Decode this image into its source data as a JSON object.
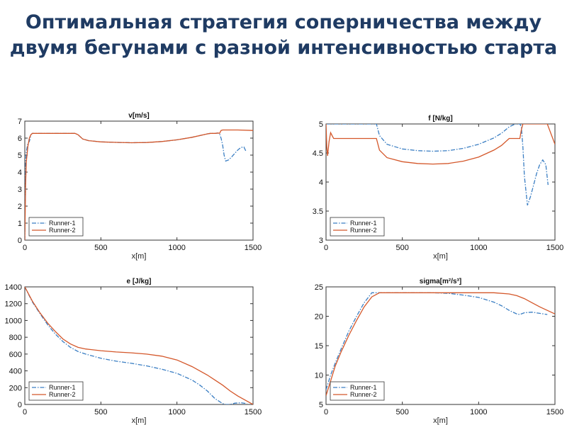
{
  "slide": {
    "title_line1": "Оптимальная стратегия соперничества между",
    "title_line2": "двумя бегунами с разной интенсивностью старта"
  },
  "colors": {
    "title": "#1f3b63",
    "runner1": "#3a7ec3",
    "runner2": "#d4572a",
    "axes": "#333333"
  },
  "chart_data": [
    {
      "type": "line",
      "title": "v[m/s]",
      "xlabel": "x[m]",
      "ylabel": "",
      "xlim": [
        0,
        1500
      ],
      "ylim": [
        0,
        7
      ],
      "xticks": [
        0,
        500,
        1000,
        1500
      ],
      "yticks": [
        0,
        1,
        2,
        3,
        4,
        5,
        6,
        7
      ],
      "legend": "bottom-left",
      "grid": false,
      "series": [
        {
          "name": "Runner-1",
          "style": "dashdot",
          "x": [
            0,
            5,
            10,
            20,
            30,
            40,
            50,
            100,
            200,
            300,
            330,
            350,
            380,
            420,
            500,
            600,
            700,
            800,
            900,
            1000,
            1100,
            1200,
            1220,
            1250,
            1270,
            1280,
            1290,
            1300,
            1310,
            1320,
            1340,
            1360,
            1380,
            1400,
            1420,
            1440,
            1455
          ],
          "y": [
            0,
            4.5,
            5.2,
            5.7,
            5.8,
            6.2,
            6.28,
            6.28,
            6.28,
            6.28,
            6.28,
            6.2,
            5.95,
            5.85,
            5.78,
            5.75,
            5.73,
            5.74,
            5.8,
            5.9,
            6.05,
            6.25,
            6.28,
            6.28,
            6.3,
            6.25,
            6.0,
            5.6,
            5.0,
            4.65,
            4.72,
            4.9,
            5.1,
            5.3,
            5.45,
            5.48,
            5.2
          ]
        },
        {
          "name": "Runner-2",
          "style": "solid",
          "x": [
            0,
            5,
            10,
            20,
            30,
            40,
            50,
            100,
            200,
            300,
            330,
            350,
            380,
            420,
            500,
            600,
            700,
            800,
            900,
            1000,
            1100,
            1200,
            1220,
            1250,
            1270,
            1280,
            1290,
            1300,
            1310,
            1400,
            1500
          ],
          "y": [
            0,
            3.2,
            4.6,
            5.5,
            6.0,
            6.2,
            6.28,
            6.28,
            6.28,
            6.28,
            6.28,
            6.2,
            5.95,
            5.85,
            5.78,
            5.75,
            5.73,
            5.74,
            5.8,
            5.9,
            6.05,
            6.25,
            6.28,
            6.28,
            6.3,
            6.28,
            6.45,
            6.48,
            6.48,
            6.48,
            6.45
          ]
        }
      ]
    },
    {
      "type": "line",
      "title": "f [N/kg]",
      "xlabel": "x[m]",
      "ylabel": "",
      "xlim": [
        0,
        1500
      ],
      "ylim": [
        3,
        5
      ],
      "xticks": [
        0,
        500,
        1000,
        1500
      ],
      "yticks": [
        3,
        3.5,
        4,
        4.5,
        5
      ],
      "legend": "bottom-left",
      "grid": false,
      "series": [
        {
          "name": "Runner-1",
          "style": "dashdot",
          "x": [
            0,
            100,
            200,
            300,
            330,
            350,
            400,
            500,
            600,
            700,
            800,
            900,
            1000,
            1100,
            1150,
            1200,
            1240,
            1270,
            1280,
            1290,
            1300,
            1320,
            1340,
            1360,
            1380,
            1400,
            1420,
            1440,
            1455
          ],
          "y": [
            5.0,
            5.0,
            5.0,
            5.0,
            5.0,
            4.8,
            4.65,
            4.57,
            4.54,
            4.53,
            4.54,
            4.58,
            4.65,
            4.76,
            4.84,
            4.95,
            5.0,
            5.0,
            4.95,
            4.6,
            4.1,
            3.6,
            3.75,
            3.95,
            4.15,
            4.3,
            4.38,
            4.3,
            3.95
          ]
        },
        {
          "name": "Runner-2",
          "style": "solid",
          "x": [
            0,
            5,
            10,
            20,
            30,
            40,
            50,
            100,
            200,
            300,
            330,
            350,
            400,
            500,
            600,
            700,
            800,
            900,
            1000,
            1100,
            1150,
            1200,
            1240,
            1270,
            1280,
            1290,
            1300,
            1350,
            1400,
            1450,
            1500
          ],
          "y": [
            5.0,
            4.6,
            4.45,
            4.7,
            4.85,
            4.8,
            4.75,
            4.75,
            4.75,
            4.75,
            4.75,
            4.55,
            4.42,
            4.35,
            4.32,
            4.31,
            4.32,
            4.36,
            4.43,
            4.55,
            4.63,
            4.75,
            4.75,
            4.75,
            4.9,
            5.0,
            5.0,
            5.0,
            5.0,
            5.0,
            4.65
          ]
        }
      ]
    },
    {
      "type": "line",
      "title": "e [J/kg]",
      "xlabel": "x[m]",
      "ylabel": "",
      "xlim": [
        0,
        1500
      ],
      "ylim": [
        0,
        1400
      ],
      "xticks": [
        0,
        500,
        1000,
        1500
      ],
      "yticks": [
        0,
        200,
        400,
        600,
        800,
        1000,
        1200,
        1400
      ],
      "legend": "bottom-left",
      "grid": false,
      "series": [
        {
          "name": "Runner-1",
          "style": "dashdot",
          "x": [
            0,
            50,
            100,
            150,
            200,
            250,
            300,
            350,
            400,
            500,
            600,
            700,
            800,
            900,
            1000,
            1100,
            1150,
            1200,
            1250,
            1300,
            1320,
            1350,
            1380,
            1420,
            1460
          ],
          "y": [
            1400,
            1220,
            1080,
            950,
            840,
            750,
            680,
            630,
            600,
            550,
            515,
            490,
            460,
            420,
            370,
            290,
            230,
            160,
            70,
            10,
            0,
            0,
            15,
            20,
            10
          ]
        },
        {
          "name": "Runner-2",
          "style": "solid",
          "x": [
            0,
            50,
            100,
            150,
            200,
            250,
            300,
            350,
            400,
            500,
            600,
            700,
            800,
            900,
            1000,
            1100,
            1200,
            1250,
            1300,
            1350,
            1400,
            1450,
            1500
          ],
          "y": [
            1400,
            1230,
            1090,
            970,
            870,
            780,
            720,
            680,
            660,
            640,
            625,
            615,
            600,
            575,
            530,
            450,
            350,
            290,
            230,
            160,
            100,
            50,
            0
          ]
        }
      ]
    },
    {
      "type": "line",
      "title": "sigma[m²/s³]",
      "xlabel": "x[m]",
      "ylabel": "",
      "xlim": [
        0,
        1500
      ],
      "ylim": [
        5,
        25
      ],
      "xticks": [
        0,
        500,
        1000,
        1500
      ],
      "yticks": [
        5,
        10,
        15,
        20,
        25
      ],
      "legend": "bottom-left",
      "grid": false,
      "series": [
        {
          "name": "Runner-1",
          "style": "dashdot",
          "x": [
            0,
            30,
            60,
            100,
            150,
            200,
            250,
            300,
            350,
            400,
            500,
            600,
            700,
            800,
            900,
            1000,
            1100,
            1150,
            1200,
            1250,
            1270,
            1300,
            1350,
            1400,
            1450
          ],
          "y": [
            7.5,
            10,
            12,
            14.5,
            17.5,
            20,
            22.3,
            24,
            24,
            24,
            24,
            24,
            24,
            23.9,
            23.6,
            23.2,
            22.4,
            21.8,
            21.0,
            20.4,
            20.3,
            20.6,
            20.7,
            20.5,
            20.3
          ]
        },
        {
          "name": "Runner-2",
          "style": "solid",
          "x": [
            0,
            30,
            60,
            100,
            150,
            200,
            250,
            300,
            350,
            400,
            500,
            600,
            700,
            800,
            900,
            1000,
            1100,
            1200,
            1250,
            1300,
            1350,
            1400,
            1450,
            1500
          ],
          "y": [
            6.5,
            9,
            11.5,
            14,
            16.8,
            19.3,
            21.6,
            23.3,
            24,
            24,
            24,
            24,
            24,
            24,
            24,
            24,
            24,
            23.8,
            23.5,
            23.0,
            22.3,
            21.6,
            21.0,
            20.4
          ]
        }
      ]
    }
  ]
}
